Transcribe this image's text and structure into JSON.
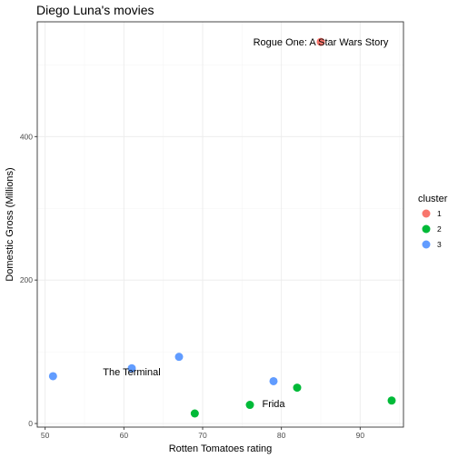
{
  "chart_data": {
    "type": "scatter",
    "title": "Diego Luna's movies",
    "xlabel": "Rotten Tomatoes rating",
    "ylabel": "Domestic Gross (Millions)",
    "xlim": [
      49,
      95.5
    ],
    "ylim": [
      -5,
      560
    ],
    "x_ticks": [
      50,
      60,
      70,
      80,
      90
    ],
    "y_ticks": [
      0,
      200,
      400
    ],
    "grid": true,
    "legend": {
      "title": "cluster",
      "position": "right",
      "entries": [
        {
          "label": "1",
          "color": "#F8766D"
        },
        {
          "label": "2",
          "color": "#00BA38"
        },
        {
          "label": "3",
          "color": "#619CFF"
        }
      ]
    },
    "points": [
      {
        "x": 85,
        "y": 532,
        "cluster": "1"
      },
      {
        "x": 69,
        "y": 14,
        "cluster": "2"
      },
      {
        "x": 76,
        "y": 26,
        "cluster": "2"
      },
      {
        "x": 82,
        "y": 50,
        "cluster": "2"
      },
      {
        "x": 94,
        "y": 32,
        "cluster": "2"
      },
      {
        "x": 51,
        "y": 66,
        "cluster": "3"
      },
      {
        "x": 61,
        "y": 77,
        "cluster": "3"
      },
      {
        "x": 67,
        "y": 93,
        "cluster": "3"
      },
      {
        "x": 79,
        "y": 59,
        "cluster": "3"
      }
    ],
    "annotations": [
      {
        "text": "Rogue One: A Star Wars Story",
        "x": 85,
        "y": 532
      },
      {
        "text": "The Terminal",
        "x": 61,
        "y": 72
      },
      {
        "text": "Frida",
        "x": 79,
        "y": 28
      }
    ]
  }
}
